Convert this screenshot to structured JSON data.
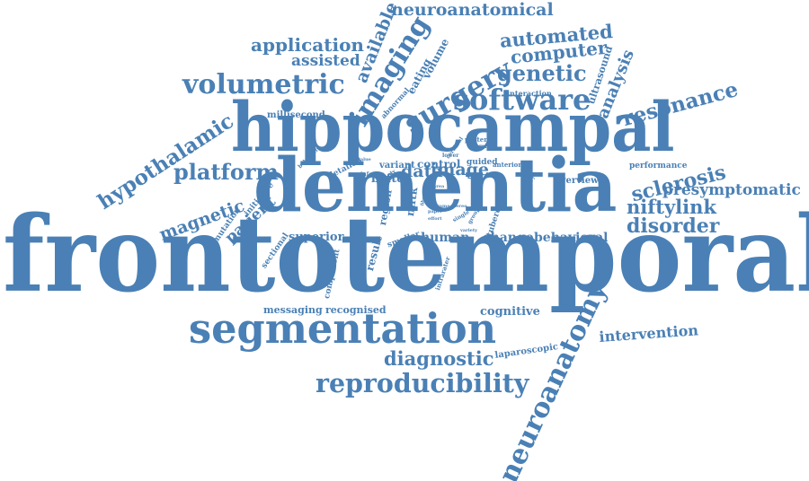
{
  "color": "#4a80b5",
  "words": [
    {
      "id": "frontotemporal",
      "text": "frontotemporal",
      "weight": 100
    },
    {
      "id": "dementia",
      "text": "dementia",
      "weight": 62
    },
    {
      "id": "hippocampal",
      "text": "hippocampal",
      "weight": 58
    },
    {
      "id": "segmentation",
      "text": "segmentation",
      "weight": 34
    },
    {
      "id": "neuroanatomy",
      "text": "neuroanatomy",
      "weight": 22
    },
    {
      "id": "reproducibility",
      "text": "reproducibility",
      "weight": 20
    },
    {
      "id": "software",
      "text": "software",
      "weight": 22
    },
    {
      "id": "surgery",
      "text": "surgery",
      "weight": 22
    },
    {
      "id": "imaging",
      "text": "imaging",
      "weight": 20
    },
    {
      "id": "volumetric",
      "text": "volumetric",
      "weight": 20
    },
    {
      "id": "hypothalamic",
      "text": "hypothalamic",
      "weight": 14
    },
    {
      "id": "platform",
      "text": "platform",
      "weight": 15
    },
    {
      "id": "genetic",
      "text": "genetic",
      "weight": 15
    },
    {
      "id": "resonance",
      "text": "resonance",
      "weight": 14
    },
    {
      "id": "automated",
      "text": "automated",
      "weight": 13
    },
    {
      "id": "computer",
      "text": "computer",
      "weight": 12
    },
    {
      "id": "application",
      "text": "application",
      "weight": 12
    },
    {
      "id": "assisted",
      "text": "assisted",
      "weight": 11
    },
    {
      "id": "available",
      "text": "available",
      "weight": 11
    },
    {
      "id": "neuroanatomical",
      "text": "neuroanatomical",
      "weight": 12
    },
    {
      "id": "analysis",
      "text": "analysis",
      "weight": 11
    },
    {
      "id": "sclerosis",
      "text": "sclerosis",
      "weight": 13
    },
    {
      "id": "presymptomatic",
      "text": "presymptomatic",
      "weight": 11
    },
    {
      "id": "niftylink",
      "text": "niftylink",
      "weight": 13
    },
    {
      "id": "disorder",
      "text": "disorder",
      "weight": 13
    },
    {
      "id": "magnetic",
      "text": "magnetic",
      "weight": 12
    },
    {
      "id": "patient",
      "text": "patient",
      "weight": 11
    },
    {
      "id": "diagnostic",
      "text": "diagnostic",
      "weight": 13
    },
    {
      "id": "intervention",
      "text": "intervention",
      "weight": 10
    },
    {
      "id": "behavioral",
      "text": "behavioral",
      "weight": 9
    },
    {
      "id": "change",
      "text": "change",
      "weight": 9
    },
    {
      "id": "human",
      "text": "human",
      "weight": 9
    },
    {
      "id": "superior",
      "text": "superior",
      "weight": 8
    },
    {
      "id": "messaging",
      "text": "messaging",
      "weight": 7
    },
    {
      "id": "recognised",
      "text": "recognised",
      "weight": 7
    },
    {
      "id": "cognitive",
      "text": "cognitive",
      "weight": 8
    },
    {
      "id": "laparoscopic",
      "text": "laparoscopic",
      "weight": 6
    },
    {
      "id": "data",
      "text": "data",
      "weight": 11
    },
    {
      "id": "image",
      "text": "image",
      "weight": 11
    },
    {
      "id": "control",
      "text": "control",
      "weight": 8
    },
    {
      "id": "variant",
      "text": "variant",
      "weight": 6
    },
    {
      "id": "bvftd",
      "text": "bvftd",
      "weight": 8
    },
    {
      "id": "overview",
      "text": "overview",
      "weight": 6
    },
    {
      "id": "performance",
      "text": "performance",
      "weight": 5
    },
    {
      "id": "millisecond",
      "text": "millisecond",
      "weight": 5
    },
    {
      "id": "eating",
      "text": "eating",
      "weight": 7
    },
    {
      "id": "volume",
      "text": "volume",
      "weight": 7
    },
    {
      "id": "ultrasound",
      "text": "ultrasound",
      "weight": 6
    },
    {
      "id": "interaction",
      "text": "interaction",
      "weight": 4
    },
    {
      "id": "abnormal",
      "text": "abnormal",
      "weight": 4
    },
    {
      "id": "posterior",
      "text": "posterior",
      "weight": 4
    },
    {
      "id": "detailed",
      "text": "detailed",
      "weight": 5
    },
    {
      "id": "initiative",
      "text": "initiative",
      "weight": 5
    },
    {
      "id": "mutation",
      "text": "mutation",
      "weight": 5
    },
    {
      "id": "sectional",
      "text": "sectional",
      "weight": 5
    },
    {
      "id": "result",
      "text": "result",
      "weight": 7
    },
    {
      "id": "component",
      "text": "component",
      "weight": 5
    },
    {
      "id": "region",
      "text": "region",
      "weight": 6
    },
    {
      "id": "niftk",
      "text": "niftk",
      "weight": 7
    },
    {
      "id": "smaller",
      "text": "smaller",
      "weight": 5
    },
    {
      "id": "tubercal",
      "text": "tubercal",
      "weight": 5
    },
    {
      "id": "guided",
      "text": "guided",
      "weight": 5
    },
    {
      "id": "latency",
      "text": "latency",
      "weight": 4
    },
    {
      "id": "intrarater",
      "text": "intrarater",
      "weight": 4
    },
    {
      "id": "anterior",
      "text": "anterior",
      "weight": 3
    },
    {
      "id": "inferior",
      "text": "inferior",
      "weight": 3
    },
    {
      "id": "behavior",
      "text": "behavior",
      "weight": 3
    },
    {
      "id": "study",
      "text": "study",
      "weight": 3
    },
    {
      "id": "cerebral",
      "text": "cerebral",
      "weight": 3
    },
    {
      "id": "lower",
      "text": "lower",
      "weight": 3
    },
    {
      "id": "submit",
      "text": "submit",
      "weight": 3
    },
    {
      "id": "value",
      "text": "value",
      "weight": 3
    },
    {
      "id": "frame",
      "text": "frame",
      "weight": 3
    },
    {
      "id": "paper",
      "text": "paper",
      "weight": 3
    },
    {
      "id": "stereo",
      "text": "stereo",
      "weight": 3
    },
    {
      "id": "effort",
      "text": "effort",
      "weight": 3
    },
    {
      "id": "variety",
      "text": "variety",
      "weight": 3
    },
    {
      "id": "group",
      "text": "group",
      "weight": 3
    },
    {
      "id": "single",
      "text": "single",
      "weight": 3
    },
    {
      "id": "area",
      "text": "area",
      "weight": 3
    },
    {
      "id": "fiber",
      "text": "fiber",
      "weight": 3
    },
    {
      "id": "system",
      "text": "system",
      "weight": 3
    }
  ]
}
